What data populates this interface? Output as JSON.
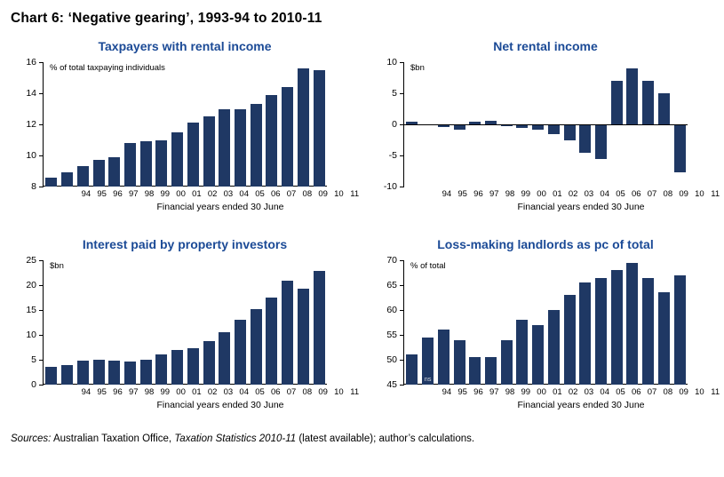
{
  "header": {
    "title": "Chart 6: ‘Negative gearing’, 1993-94 to 2010-11"
  },
  "colors": {
    "bar": "#1f3864",
    "panel_title": "#1b4a96",
    "axis": "#000000"
  },
  "chart_data": [
    {
      "type": "bar",
      "title": "Taxpayers with rental income",
      "ylabel": "% of total taxpaying individuals",
      "xlabel": "Financial years ended 30 June",
      "ylim": [
        8,
        16
      ],
      "yticks": [
        8,
        10,
        12,
        14,
        16
      ],
      "baseline": 8,
      "grid": false,
      "categories": [
        "94",
        "95",
        "96",
        "97",
        "98",
        "99",
        "00",
        "01",
        "02",
        "03",
        "04",
        "05",
        "06",
        "07",
        "08",
        "09",
        "10",
        "11"
      ],
      "values": [
        8.6,
        8.9,
        9.3,
        9.7,
        9.9,
        10.8,
        10.9,
        11.0,
        11.5,
        12.1,
        12.5,
        13.0,
        13.0,
        13.3,
        13.9,
        14.4,
        15.6,
        15.5
      ]
    },
    {
      "type": "bar",
      "title": "Net rental income",
      "ylabel": "$bn",
      "xlabel": "Financial years ended 30 June",
      "ylim": [
        -10,
        10
      ],
      "yticks": [
        10,
        5,
        0,
        -5,
        -10
      ],
      "baseline": 0,
      "grid": false,
      "categories": [
        "94",
        "95",
        "96",
        "97",
        "98",
        "99",
        "00",
        "01",
        "02",
        "03",
        "04",
        "05",
        "06",
        "07",
        "08",
        "09",
        "10",
        "11"
      ],
      "values": [
        0.4,
        -0.2,
        -0.4,
        -0.9,
        0.4,
        0.6,
        -0.3,
        -0.5,
        -0.8,
        -1.5,
        -2.5,
        -4.5,
        -5.5,
        7.0,
        9.0,
        7.0,
        5.0,
        -7.7
      ]
    },
    {
      "type": "bar",
      "title": "Interest paid by property investors",
      "ylabel": "$bn",
      "xlabel": "Financial years ended 30 June",
      "ylim": [
        0,
        25
      ],
      "yticks": [
        0,
        5,
        10,
        15,
        20,
        25
      ],
      "baseline": 0,
      "grid": false,
      "categories": [
        "94",
        "95",
        "96",
        "97",
        "98",
        "99",
        "00",
        "01",
        "02",
        "03",
        "04",
        "05",
        "06",
        "07",
        "08",
        "09",
        "10",
        "11"
      ],
      "values": [
        3.5,
        4.0,
        4.9,
        5.0,
        4.9,
        4.7,
        5.0,
        6.1,
        7.0,
        7.3,
        8.7,
        10.6,
        13.0,
        15.1,
        17.5,
        20.9,
        19.3,
        22.9
      ]
    },
    {
      "type": "bar",
      "title": "Loss-making landlords as pc of total",
      "ylabel": "% of total",
      "xlabel": "Financial years ended 30 June",
      "ylim": [
        45,
        70
      ],
      "yticks": [
        45,
        50,
        55,
        60,
        65,
        70
      ],
      "baseline": 45,
      "grid": false,
      "categories": [
        "94",
        "95",
        "96",
        "97",
        "98",
        "99",
        "00",
        "01",
        "02",
        "03",
        "04",
        "05",
        "06",
        "07",
        "08",
        "09",
        "10",
        "11"
      ],
      "values": [
        51,
        54.5,
        56,
        54,
        50.5,
        50.5,
        54,
        58,
        57,
        60,
        63,
        65.5,
        66.5,
        68,
        69.5,
        66.5,
        63.5,
        67
      ],
      "annotation": {
        "text": "ns",
        "bar_index": 1
      }
    }
  ],
  "footer": {
    "sources_label": "Sources:",
    "text_1": " Australian Taxation Office, ",
    "publication": "Taxation Statistics 2010-11",
    "text_2": " (latest available); author’s calculations."
  }
}
